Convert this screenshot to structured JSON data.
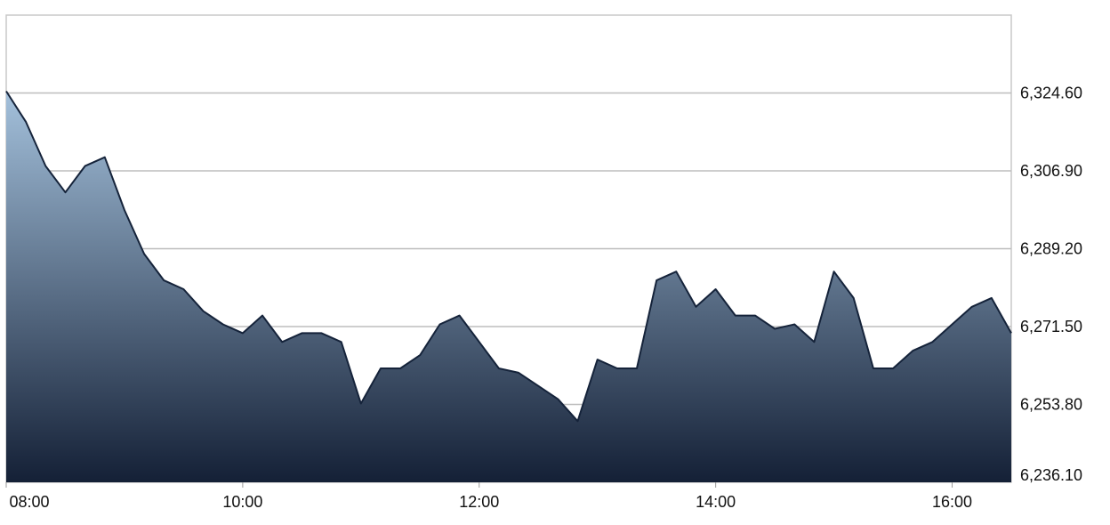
{
  "chart_data": {
    "type": "area",
    "title": "",
    "xlabel": "",
    "ylabel": "",
    "y_axis_side": "right",
    "grid": "horizontal",
    "ylim": [
      6236.1,
      6342.3
    ],
    "y_ticks": [
      6236.1,
      6253.8,
      6271.5,
      6289.2,
      6306.9,
      6324.6
    ],
    "y_tick_labels": [
      "6,236.10",
      "6,253.80",
      "6,271.50",
      "6,289.20",
      "6,306.90",
      "6,324.60"
    ],
    "x_range_hours": [
      8.0,
      16.5
    ],
    "x_ticks": [
      8,
      10,
      12,
      14,
      16
    ],
    "x_tick_labels": [
      "08:00",
      "10:00",
      "12:00",
      "14:00",
      "16:00"
    ],
    "series": [
      {
        "x": [
          "08:00",
          "08:10",
          "08:20",
          "08:30",
          "08:40",
          "08:50",
          "09:00",
          "09:10",
          "09:20",
          "09:30",
          "09:40",
          "09:50",
          "10:00",
          "10:10",
          "10:20",
          "10:30",
          "10:40",
          "10:50",
          "11:00",
          "11:10",
          "11:20",
          "11:30",
          "11:40",
          "11:50",
          "12:00",
          "12:10",
          "12:20",
          "12:30",
          "12:40",
          "12:50",
          "13:00",
          "13:10",
          "13:20",
          "13:30",
          "13:40",
          "13:50",
          "14:00",
          "14:10",
          "14:20",
          "14:30",
          "14:40",
          "14:50",
          "15:00",
          "15:10",
          "15:20",
          "15:30",
          "15:40",
          "15:50",
          "16:00",
          "16:10",
          "16:20",
          "16:30"
        ],
        "values": [
          6325,
          6318,
          6308,
          6302,
          6308,
          6310,
          6298,
          6288,
          6282,
          6280,
          6275,
          6272,
          6270,
          6274,
          6268,
          6270,
          6270,
          6268,
          6254,
          6262,
          6262,
          6265,
          6272,
          6274,
          6268,
          6262,
          6261,
          6258,
          6255,
          6250,
          6264,
          6262,
          6262,
          6282,
          6284,
          6276,
          6280,
          6274,
          6274,
          6271,
          6272,
          6268,
          6284,
          6278,
          6262,
          6262,
          6266,
          6268,
          6272,
          6276,
          6278,
          6270
        ]
      }
    ],
    "colors": {
      "line": "#15233a",
      "fill_top": "#a4c1dc",
      "fill_bottom": "#142036",
      "grid": "#bdbdbd",
      "frame": "#c8c8c8"
    }
  }
}
